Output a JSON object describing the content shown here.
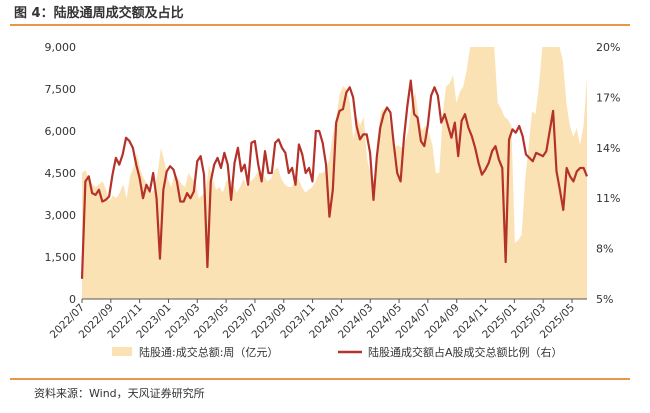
{
  "figure": {
    "title": "图 4：陆股通周成交额及占比",
    "source": "资料来源：Wind，天风证券研究所"
  },
  "colors": {
    "area": "#fbe2b4",
    "line": "#b5322a",
    "accent_rule": "#e8964a"
  },
  "chart_data": {
    "type": "area",
    "x_tick_labels": [
      "2022/07",
      "2022/09",
      "2022/11",
      "2023/01",
      "2023/03",
      "2023/05",
      "2023/07",
      "2023/09",
      "2023/11",
      "2024/01",
      "2024/03",
      "2024/05",
      "2024/07",
      "2024/09",
      "2024/11",
      "2025/01",
      "2025/03",
      "2025/05"
    ],
    "x_range": [
      "2022/07",
      "2025/06"
    ],
    "y_left": {
      "range": [
        0,
        9000
      ],
      "ticks": [
        "0",
        "1,500",
        "3,000",
        "4,500",
        "6,000",
        "7,500",
        "9,000"
      ]
    },
    "y_right": {
      "range": [
        5,
        20
      ],
      "ticks": [
        "5%",
        "8%",
        "11%",
        "14%",
        "17%",
        "20%"
      ]
    },
    "grid": false,
    "legend_position": "bottom",
    "series": [
      {
        "name": "陆股通:成交总额:周（亿元）",
        "type": "area",
        "axis": "left",
        "values": [
          4500,
          4600,
          4300,
          4100,
          4000,
          4100,
          4200,
          3900,
          3500,
          3700,
          3600,
          3800,
          4100,
          3600,
          4400,
          4700,
          5200,
          4600,
          4300,
          4100,
          3800,
          3900,
          4500,
          5400,
          4900,
          4300,
          4000,
          4500,
          4300,
          4100,
          4000,
          4500,
          4300,
          4200,
          3600,
          3700,
          3900,
          4800,
          4300,
          3900,
          4000,
          3800,
          4200,
          4300,
          4100,
          3800,
          4000,
          4300,
          4000,
          4200,
          4300,
          4500,
          4600,
          4400,
          4200,
          4300,
          4600,
          4700,
          4300,
          4100,
          4000,
          4000,
          4200,
          4300,
          4000,
          3800,
          3900,
          4000,
          4200,
          4500,
          4500,
          4600,
          5000,
          5900,
          6500,
          7300,
          7600,
          7500,
          7000,
          5700,
          6500,
          6200,
          6500,
          5000,
          4500,
          4200,
          5700,
          6700,
          6800,
          6700,
          6000,
          5400,
          5500,
          5400,
          5600,
          6000,
          7000,
          7400,
          6500,
          6000,
          6200,
          5900,
          5500,
          4500,
          4500,
          6600,
          7600,
          7700,
          8000,
          7000,
          7400,
          7600,
          8200,
          9000,
          9000,
          9000,
          9000,
          9000,
          9000,
          9000,
          9000,
          7000,
          6800,
          6500,
          6400,
          6200,
          2000,
          2100,
          2300,
          4300,
          5400,
          6700,
          6600,
          7600,
          9000,
          9000,
          9000,
          9000,
          9000,
          9000,
          8500,
          7000,
          6200,
          5800,
          6100,
          5500,
          6200,
          7900
        ]
      },
      {
        "name": "陆股通成交额占A股成交总额比例（右）",
        "type": "line",
        "axis": "right",
        "values": [
          6.2,
          12.0,
          12.3,
          11.3,
          11.2,
          11.5,
          10.8,
          10.9,
          11.1,
          12.4,
          13.4,
          13.0,
          13.6,
          14.6,
          14.4,
          14.0,
          13.0,
          12.2,
          11.0,
          11.8,
          11.4,
          12.5,
          11.0,
          7.4,
          11.5,
          12.6,
          12.9,
          12.7,
          12.0,
          10.8,
          10.8,
          11.3,
          11.0,
          11.4,
          13.2,
          13.5,
          12.4,
          6.9,
          12.0,
          13.0,
          13.4,
          12.8,
          13.7,
          13.0,
          10.9,
          13.1,
          14.0,
          12.6,
          13.0,
          11.8,
          14.3,
          14.4,
          13.0,
          12.0,
          13.8,
          12.5,
          12.5,
          14.3,
          14.5,
          14.0,
          13.7,
          12.5,
          12.8,
          11.8,
          14.2,
          13.6,
          12.5,
          12.8,
          12.0,
          15.0,
          15.0,
          14.3,
          13.0,
          9.9,
          11.5,
          15.5,
          16.2,
          16.3,
          17.3,
          17.6,
          17.0,
          15.3,
          14.5,
          14.8,
          14.8,
          13.7,
          10.9,
          13.5,
          15.2,
          16.0,
          16.4,
          16.1,
          14.2,
          12.5,
          12.0,
          14.6,
          16.5,
          18.0,
          16.0,
          15.8,
          14.4,
          14.1,
          15.3,
          17.1,
          17.6,
          17.1,
          15.5,
          16.0,
          15.3,
          14.6,
          15.5,
          13.5,
          15.6,
          16.0,
          15.2,
          14.7,
          14.0,
          13.1,
          12.4,
          12.7,
          13.1,
          13.8,
          14.1,
          13.3,
          12.8,
          7.2,
          14.5,
          15.1,
          14.9,
          15.3,
          14.7,
          13.6,
          13.4,
          13.2,
          13.7,
          13.6,
          13.5,
          13.8,
          15.0,
          16.2,
          12.6,
          11.5,
          10.3,
          12.8,
          12.3,
          12.0,
          12.6,
          12.8,
          12.8,
          12.3
        ]
      }
    ]
  }
}
